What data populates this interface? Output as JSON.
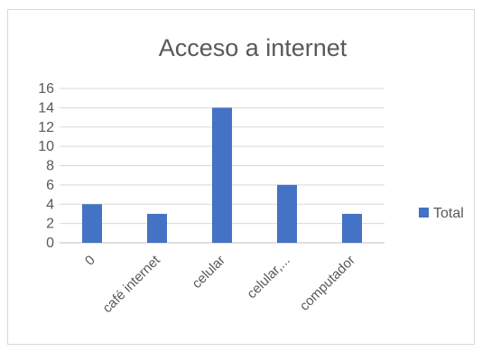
{
  "chart_data": {
    "type": "bar",
    "title": "Acceso a internet",
    "categories": [
      "0",
      "café internet",
      "celular",
      "celular,...",
      "computador"
    ],
    "series": [
      {
        "name": "Total",
        "values": [
          4,
          3,
          14,
          6,
          3
        ],
        "color": "#4472C4"
      }
    ],
    "ylim": [
      0,
      16
    ],
    "yticks": [
      0,
      2,
      4,
      6,
      8,
      10,
      12,
      14,
      16
    ],
    "grid": true,
    "legend_position": "right"
  }
}
